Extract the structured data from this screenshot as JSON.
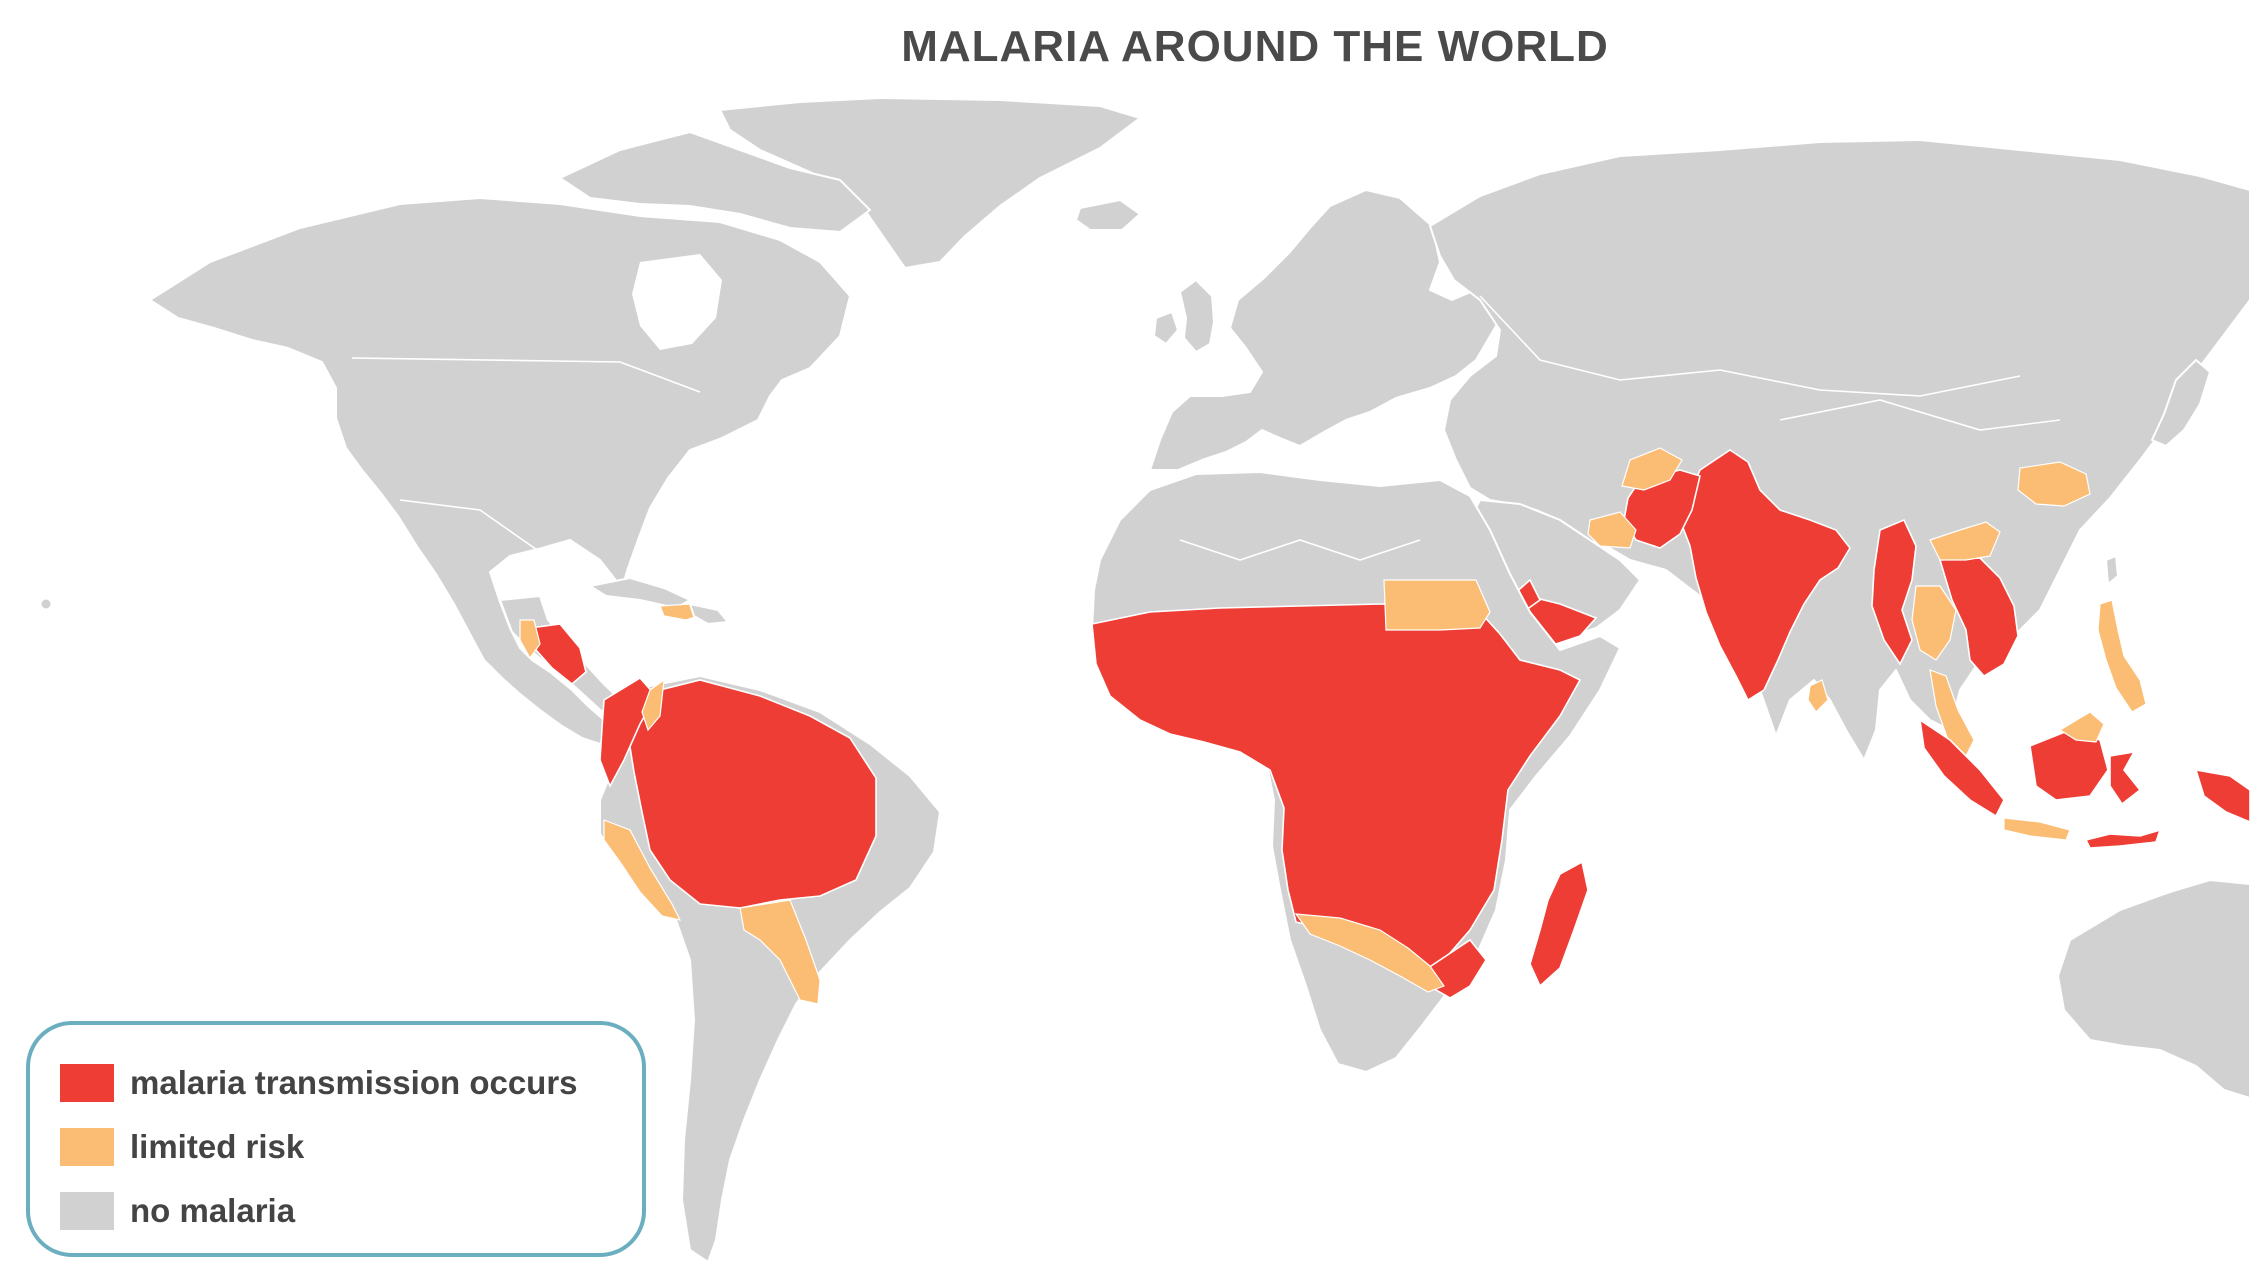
{
  "title": "MALARIA AROUND THE WORLD",
  "colors": {
    "malaria_transmission": "#ee3d35",
    "limited_risk": "#fbbd74",
    "no_malaria": "#d1d1d1",
    "legend_border": "#6aaebf"
  },
  "legend": {
    "items": [
      {
        "label": "malaria transmission occurs",
        "color": "#ee3d35"
      },
      {
        "label": "limited risk",
        "color": "#fbbd74"
      },
      {
        "label": "no malaria",
        "color": "#d1d1d1"
      }
    ]
  }
}
